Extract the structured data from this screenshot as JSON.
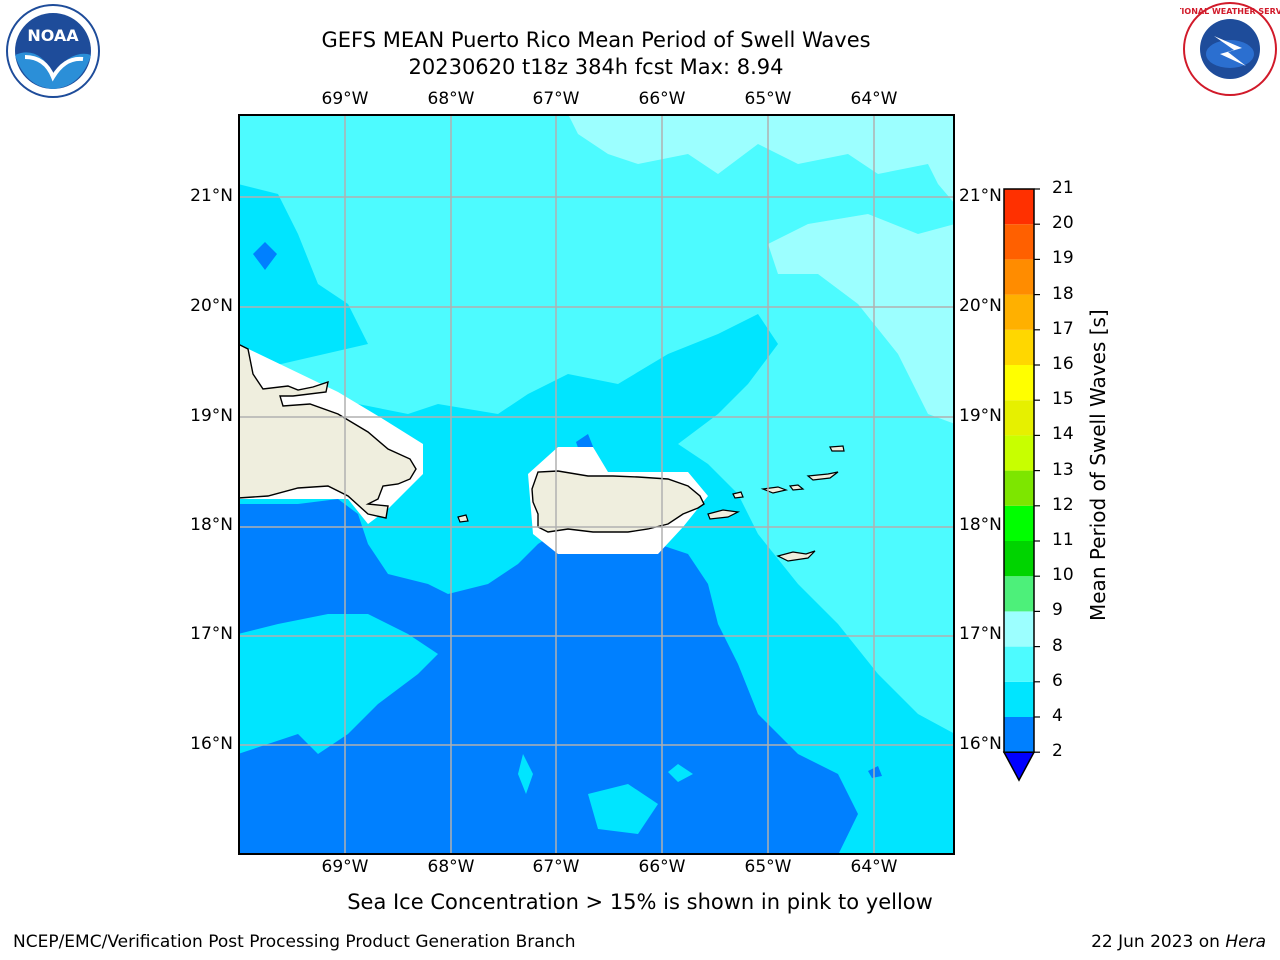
{
  "title_line1": "GEFS MEAN Puerto Rico Mean Period of Swell Waves",
  "title_line2": "20230620 t18z 384h fcst   Max: 8.94",
  "lon_labels": [
    "69°W",
    "68°W",
    "67°W",
    "66°W",
    "65°W",
    "64°W"
  ],
  "lat_labels": [
    "21°N",
    "20°N",
    "19°N",
    "18°N",
    "17°N",
    "16°N"
  ],
  "colorbar": {
    "label": "Mean Period of Swell Waves [s]",
    "ticks": [
      "2",
      "4",
      "6",
      "8",
      "9",
      "10",
      "11",
      "12",
      "13",
      "14",
      "15",
      "16",
      "17",
      "18",
      "19",
      "20",
      "21"
    ],
    "colors": [
      "#0080ff",
      "#00e5ff",
      "#4dfbff",
      "#9cffff",
      "#4df07a",
      "#00d400",
      "#00ff00",
      "#7de600",
      "#c8ff00",
      "#e6f000",
      "#ffff00",
      "#ffd700",
      "#ffb000",
      "#ff8c00",
      "#ff6000",
      "#ff3000",
      "#ff0000"
    ],
    "extend_color": "#0000ff"
  },
  "note": "Sea Ice Concentration > 15% is shown in pink to yellow",
  "footer_left": "NCEP/EMC/Verification Post Processing Product Generation Branch",
  "footer_date": "22 Jun 2023 on",
  "footer_machine": "Hera",
  "logos": {
    "left": "NOAA",
    "right": "NATIONAL WEATHER SERVICE"
  }
}
